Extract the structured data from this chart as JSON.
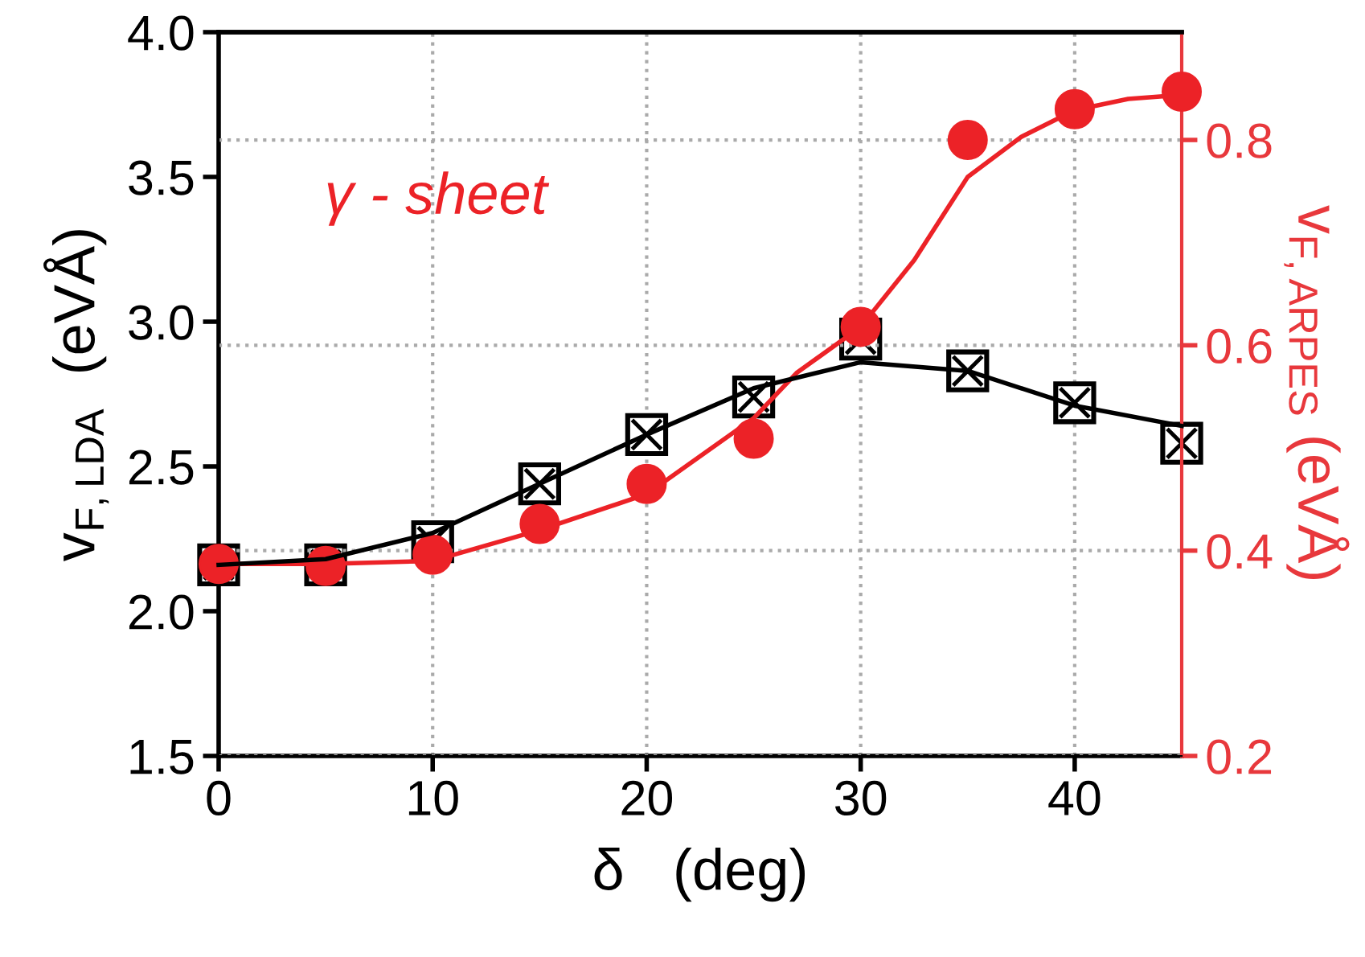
{
  "chart_data": {
    "type": "scatter",
    "xlabel": "δ   (deg)",
    "ylabel": "v$_{F,LDA}$  (eVÅ)",
    "y2label": "v$_{F,ARPES}$ (eVÅ)",
    "xlim": [
      0,
      45
    ],
    "xticks": [
      0,
      10,
      20,
      30,
      40
    ],
    "ylim": [
      1.5,
      4.0
    ],
    "yticks": [
      1.5,
      {
        "value": 2,
        "label": "2.0"
      },
      2.5,
      {
        "value": 3,
        "label": "3.0"
      },
      3.5,
      {
        "value": 4,
        "label": "4.0"
      }
    ],
    "y2lim": [
      0.2,
      0.905
    ],
    "y2ticks": [
      0.2,
      0.4,
      0.6,
      0.8
    ],
    "grid": true,
    "legend": false,
    "annotations": [
      "γ - sheet"
    ],
    "series": [
      {
        "type": "line",
        "color": "#000000",
        "x": [
          0,
          5,
          10,
          15,
          20,
          25,
          30,
          35,
          40,
          45
        ],
        "values": [
          2.16,
          2.18,
          2.27,
          2.44,
          2.61,
          2.77,
          2.86,
          2.83,
          2.71,
          2.64
        ]
      },
      {
        "color": "#000000",
        "marker": "square",
        "x": [
          0,
          5,
          10,
          15,
          20,
          25,
          30,
          35,
          40,
          45
        ],
        "values": [
          2.16,
          2.16,
          2.24,
          2.44,
          2.61,
          2.74,
          2.94,
          2.83,
          2.72,
          2.58
        ]
      },
      {
        "type": "line",
        "color": "#ec2227",
        "axis": "y2",
        "x": [
          0,
          5,
          10,
          15,
          20,
          25,
          27,
          30,
          32.5,
          35,
          37.5,
          40,
          42.5,
          45
        ],
        "values": [
          0.387,
          0.387,
          0.39,
          0.42,
          0.455,
          0.529,
          0.573,
          0.618,
          0.683,
          0.764,
          0.803,
          0.829,
          0.84,
          0.844
        ]
      },
      {
        "color": "#ec2227",
        "marker": "circle",
        "axis": "y2",
        "x": [
          0,
          5,
          10,
          15,
          20,
          25,
          30,
          35,
          40,
          45
        ],
        "values": [
          0.387,
          0.385,
          0.396,
          0.426,
          0.465,
          0.509,
          0.618,
          0.8,
          0.83,
          0.847
        ]
      }
    ]
  }
}
